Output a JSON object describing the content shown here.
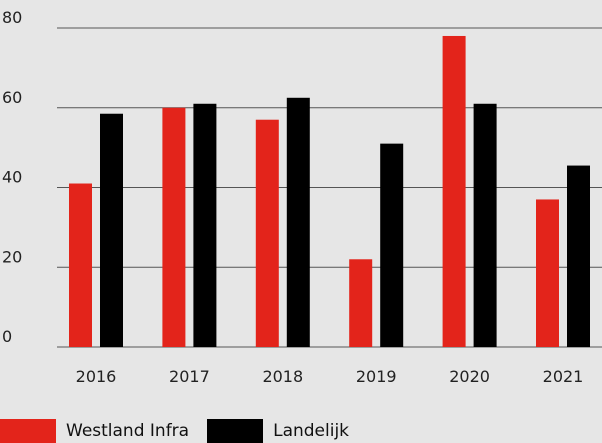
{
  "chart_data": {
    "type": "bar",
    "categories": [
      "2016",
      "2017",
      "2018",
      "2019",
      "2020",
      "2021"
    ],
    "series": [
      {
        "name": "Westland Infra",
        "color": "#e3241b",
        "values": [
          41,
          60,
          57,
          22,
          78,
          37
        ]
      },
      {
        "name": "Landelijk",
        "color": "#000000",
        "values": [
          58.5,
          61,
          62.5,
          51,
          61,
          45.5
        ]
      }
    ],
    "title": "",
    "xlabel": "",
    "ylabel": "",
    "ylim": [
      0,
      80
    ],
    "yticks": [
      "0",
      "20",
      "40",
      "60",
      "80"
    ],
    "grid": true,
    "legend_position": "bottom-left"
  },
  "colors": {
    "background": "#e6e6e6",
    "gridline": "#555555"
  }
}
